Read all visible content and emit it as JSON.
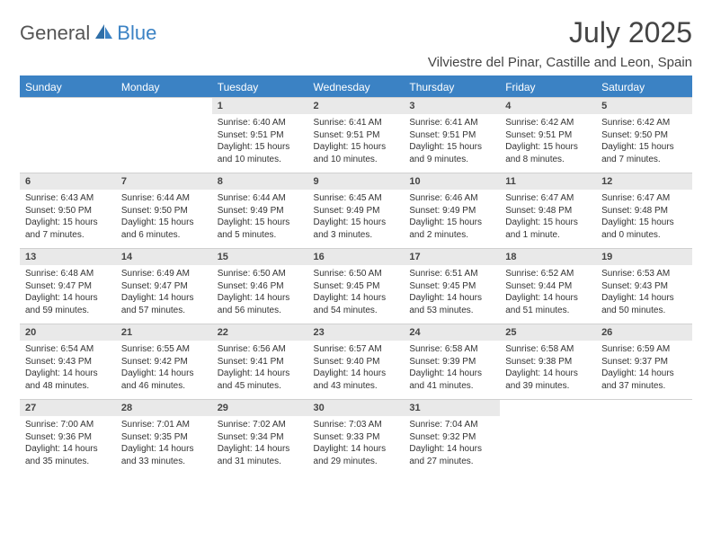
{
  "brand": {
    "part1": "General",
    "part2": "Blue"
  },
  "title": "July 2025",
  "location": "Vilviestre del Pinar, Castille and Leon, Spain",
  "colors": {
    "accent": "#3b82c4",
    "headerBg": "#3b82c4",
    "numBg": "#e9e9e9"
  },
  "dayHeaders": [
    "Sunday",
    "Monday",
    "Tuesday",
    "Wednesday",
    "Thursday",
    "Friday",
    "Saturday"
  ],
  "weeks": [
    [
      null,
      null,
      {
        "n": "1",
        "sr": "Sunrise: 6:40 AM",
        "ss": "Sunset: 9:51 PM",
        "d1": "Daylight: 15 hours",
        "d2": "and 10 minutes."
      },
      {
        "n": "2",
        "sr": "Sunrise: 6:41 AM",
        "ss": "Sunset: 9:51 PM",
        "d1": "Daylight: 15 hours",
        "d2": "and 10 minutes."
      },
      {
        "n": "3",
        "sr": "Sunrise: 6:41 AM",
        "ss": "Sunset: 9:51 PM",
        "d1": "Daylight: 15 hours",
        "d2": "and 9 minutes."
      },
      {
        "n": "4",
        "sr": "Sunrise: 6:42 AM",
        "ss": "Sunset: 9:51 PM",
        "d1": "Daylight: 15 hours",
        "d2": "and 8 minutes."
      },
      {
        "n": "5",
        "sr": "Sunrise: 6:42 AM",
        "ss": "Sunset: 9:50 PM",
        "d1": "Daylight: 15 hours",
        "d2": "and 7 minutes."
      }
    ],
    [
      {
        "n": "6",
        "sr": "Sunrise: 6:43 AM",
        "ss": "Sunset: 9:50 PM",
        "d1": "Daylight: 15 hours",
        "d2": "and 7 minutes."
      },
      {
        "n": "7",
        "sr": "Sunrise: 6:44 AM",
        "ss": "Sunset: 9:50 PM",
        "d1": "Daylight: 15 hours",
        "d2": "and 6 minutes."
      },
      {
        "n": "8",
        "sr": "Sunrise: 6:44 AM",
        "ss": "Sunset: 9:49 PM",
        "d1": "Daylight: 15 hours",
        "d2": "and 5 minutes."
      },
      {
        "n": "9",
        "sr": "Sunrise: 6:45 AM",
        "ss": "Sunset: 9:49 PM",
        "d1": "Daylight: 15 hours",
        "d2": "and 3 minutes."
      },
      {
        "n": "10",
        "sr": "Sunrise: 6:46 AM",
        "ss": "Sunset: 9:49 PM",
        "d1": "Daylight: 15 hours",
        "d2": "and 2 minutes."
      },
      {
        "n": "11",
        "sr": "Sunrise: 6:47 AM",
        "ss": "Sunset: 9:48 PM",
        "d1": "Daylight: 15 hours",
        "d2": "and 1 minute."
      },
      {
        "n": "12",
        "sr": "Sunrise: 6:47 AM",
        "ss": "Sunset: 9:48 PM",
        "d1": "Daylight: 15 hours",
        "d2": "and 0 minutes."
      }
    ],
    [
      {
        "n": "13",
        "sr": "Sunrise: 6:48 AM",
        "ss": "Sunset: 9:47 PM",
        "d1": "Daylight: 14 hours",
        "d2": "and 59 minutes."
      },
      {
        "n": "14",
        "sr": "Sunrise: 6:49 AM",
        "ss": "Sunset: 9:47 PM",
        "d1": "Daylight: 14 hours",
        "d2": "and 57 minutes."
      },
      {
        "n": "15",
        "sr": "Sunrise: 6:50 AM",
        "ss": "Sunset: 9:46 PM",
        "d1": "Daylight: 14 hours",
        "d2": "and 56 minutes."
      },
      {
        "n": "16",
        "sr": "Sunrise: 6:50 AM",
        "ss": "Sunset: 9:45 PM",
        "d1": "Daylight: 14 hours",
        "d2": "and 54 minutes."
      },
      {
        "n": "17",
        "sr": "Sunrise: 6:51 AM",
        "ss": "Sunset: 9:45 PM",
        "d1": "Daylight: 14 hours",
        "d2": "and 53 minutes."
      },
      {
        "n": "18",
        "sr": "Sunrise: 6:52 AM",
        "ss": "Sunset: 9:44 PM",
        "d1": "Daylight: 14 hours",
        "d2": "and 51 minutes."
      },
      {
        "n": "19",
        "sr": "Sunrise: 6:53 AM",
        "ss": "Sunset: 9:43 PM",
        "d1": "Daylight: 14 hours",
        "d2": "and 50 minutes."
      }
    ],
    [
      {
        "n": "20",
        "sr": "Sunrise: 6:54 AM",
        "ss": "Sunset: 9:43 PM",
        "d1": "Daylight: 14 hours",
        "d2": "and 48 minutes."
      },
      {
        "n": "21",
        "sr": "Sunrise: 6:55 AM",
        "ss": "Sunset: 9:42 PM",
        "d1": "Daylight: 14 hours",
        "d2": "and 46 minutes."
      },
      {
        "n": "22",
        "sr": "Sunrise: 6:56 AM",
        "ss": "Sunset: 9:41 PM",
        "d1": "Daylight: 14 hours",
        "d2": "and 45 minutes."
      },
      {
        "n": "23",
        "sr": "Sunrise: 6:57 AM",
        "ss": "Sunset: 9:40 PM",
        "d1": "Daylight: 14 hours",
        "d2": "and 43 minutes."
      },
      {
        "n": "24",
        "sr": "Sunrise: 6:58 AM",
        "ss": "Sunset: 9:39 PM",
        "d1": "Daylight: 14 hours",
        "d2": "and 41 minutes."
      },
      {
        "n": "25",
        "sr": "Sunrise: 6:58 AM",
        "ss": "Sunset: 9:38 PM",
        "d1": "Daylight: 14 hours",
        "d2": "and 39 minutes."
      },
      {
        "n": "26",
        "sr": "Sunrise: 6:59 AM",
        "ss": "Sunset: 9:37 PM",
        "d1": "Daylight: 14 hours",
        "d2": "and 37 minutes."
      }
    ],
    [
      {
        "n": "27",
        "sr": "Sunrise: 7:00 AM",
        "ss": "Sunset: 9:36 PM",
        "d1": "Daylight: 14 hours",
        "d2": "and 35 minutes."
      },
      {
        "n": "28",
        "sr": "Sunrise: 7:01 AM",
        "ss": "Sunset: 9:35 PM",
        "d1": "Daylight: 14 hours",
        "d2": "and 33 minutes."
      },
      {
        "n": "29",
        "sr": "Sunrise: 7:02 AM",
        "ss": "Sunset: 9:34 PM",
        "d1": "Daylight: 14 hours",
        "d2": "and 31 minutes."
      },
      {
        "n": "30",
        "sr": "Sunrise: 7:03 AM",
        "ss": "Sunset: 9:33 PM",
        "d1": "Daylight: 14 hours",
        "d2": "and 29 minutes."
      },
      {
        "n": "31",
        "sr": "Sunrise: 7:04 AM",
        "ss": "Sunset: 9:32 PM",
        "d1": "Daylight: 14 hours",
        "d2": "and 27 minutes."
      },
      null,
      null
    ]
  ]
}
